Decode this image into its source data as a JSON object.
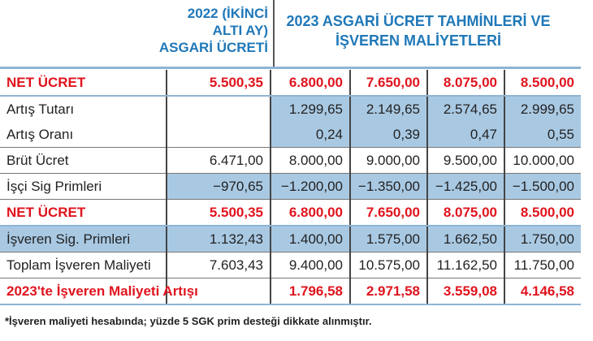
{
  "header": {
    "col_2022": "2022 (İKİNCİ ALTI AY) ASGARİ ÜCRETİ",
    "col_2023": "2023 ASGARİ ÜCRET TAHMİNLERİ VE İŞVEREN MALİYETLERİ"
  },
  "table": {
    "rows": [
      [
        "NET ÜCRET",
        "5.500,35",
        "6.800,00",
        "7.650,00",
        "8.075,00",
        "8.500,00"
      ],
      [
        "Artış Tutarı",
        null,
        "1.299,65",
        "2.149,65",
        "2.574,65",
        "2.999,65"
      ],
      [
        "Artış Oranı",
        null,
        "0,24",
        "0,39",
        "0,47",
        "0,55"
      ],
      [
        "Brüt Ücret",
        "6.471,00",
        "8.000,00",
        "9.000,00",
        "9.500,00",
        "10.000,00"
      ],
      [
        "İşçi Sig Primleri",
        "−970,65",
        "−1.200,00",
        "−1.350,00",
        "−1.425,00",
        "−1.500,00"
      ],
      [
        "NET ÜCRET",
        "5.500,35",
        "6.800,00",
        "7.650,00",
        "8.075,00",
        "8.500,00"
      ],
      [
        "İşveren Sig. Primleri",
        "1.132,43",
        "1.400,00",
        "1.575,00",
        "1.662,50",
        "1.750,00"
      ],
      [
        "Toplam İşveren Maliyeti",
        "7.603,43",
        "9.400,00",
        "10.575,00",
        "11.162,50",
        "11.750,00"
      ],
      [
        "2023'te İşveren Maliyeti Artışı",
        null,
        "1.796,58",
        "2.971,58",
        "3.559,08",
        "4.146,58"
      ]
    ]
  },
  "footnote": "*İşveren maliyeti hesabında; yüzde 5 SGK prim desteği dikkate alınmıştır."
}
